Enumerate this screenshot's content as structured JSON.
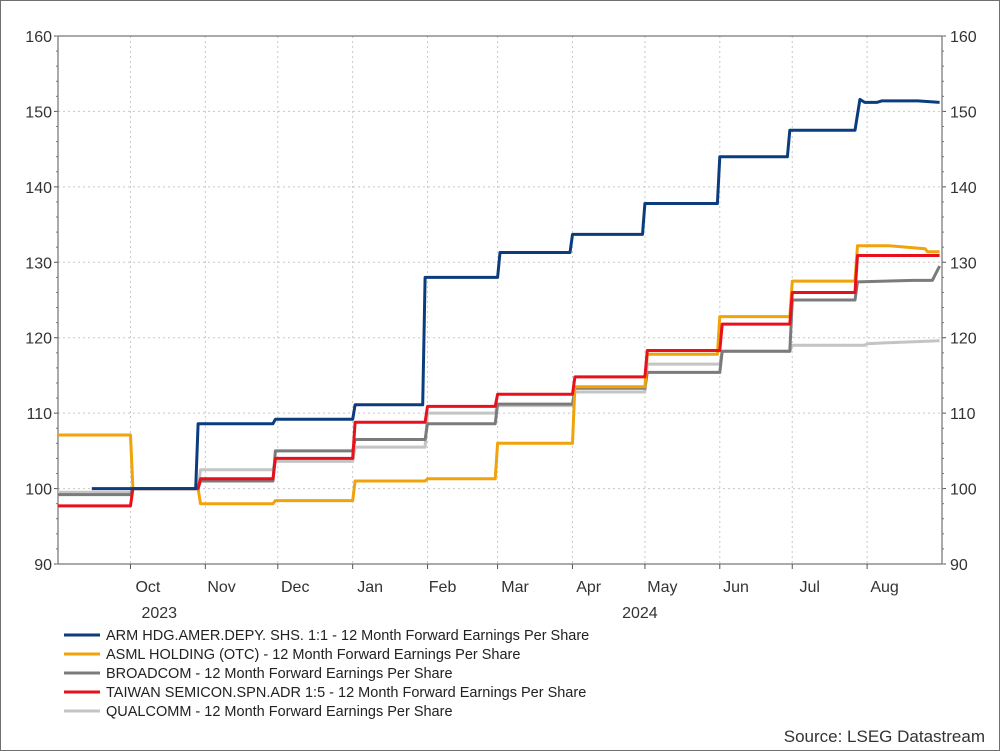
{
  "chart_data": {
    "type": "line",
    "source": "Source: LSEG Datastream",
    "ylim": [
      90,
      160
    ],
    "y_ticks": [
      90,
      100,
      110,
      120,
      130,
      140,
      150,
      160
    ],
    "x_range": [
      "2023-09-01",
      "2024-09-01"
    ],
    "x_ticks": [
      {
        "date": "2023-10-01",
        "label": "Oct"
      },
      {
        "date": "2023-11-01",
        "label": "Nov"
      },
      {
        "date": "2023-12-01",
        "label": "Dec"
      },
      {
        "date": "2024-01-01",
        "label": "Jan"
      },
      {
        "date": "2024-02-01",
        "label": "Feb"
      },
      {
        "date": "2024-03-01",
        "label": "Mar"
      },
      {
        "date": "2024-04-01",
        "label": "Apr"
      },
      {
        "date": "2024-05-01",
        "label": "May"
      },
      {
        "date": "2024-06-01",
        "label": "Jun"
      },
      {
        "date": "2024-07-01",
        "label": "Jul"
      },
      {
        "date": "2024-08-01",
        "label": "Aug"
      }
    ],
    "year_labels": [
      {
        "date": "2023-10-15",
        "label": "2023"
      },
      {
        "date": "2024-05-01",
        "label": "2024"
      }
    ],
    "grid": true,
    "legend_position": "bottom",
    "series": [
      {
        "name": "ARM HDG.AMER.DEPY. SHS. 1:1 - 12 Month Forward Earnings Per Share",
        "color": "#0b3d7e",
        "points": [
          [
            "2023-09-15",
            100
          ],
          [
            "2023-10-28",
            100
          ],
          [
            "2023-10-29",
            108.6
          ],
          [
            "2023-11-29",
            108.6
          ],
          [
            "2023-11-30",
            109.2
          ],
          [
            "2024-01-01",
            109.2
          ],
          [
            "2024-01-02",
            111.1
          ],
          [
            "2024-01-30",
            111.1
          ],
          [
            "2024-01-31",
            128.0
          ],
          [
            "2024-03-01",
            128.0
          ],
          [
            "2024-03-02",
            131.3
          ],
          [
            "2024-03-31",
            131.3
          ],
          [
            "2024-04-01",
            133.7
          ],
          [
            "2024-04-30",
            133.7
          ],
          [
            "2024-05-01",
            137.8
          ],
          [
            "2024-05-31",
            137.8
          ],
          [
            "2024-06-01",
            144.0
          ],
          [
            "2024-06-29",
            144.0
          ],
          [
            "2024-06-30",
            147.5
          ],
          [
            "2024-07-27",
            147.5
          ],
          [
            "2024-07-29",
            151.6
          ],
          [
            "2024-07-31",
            151.2
          ],
          [
            "2024-08-05",
            151.2
          ],
          [
            "2024-08-07",
            151.4
          ],
          [
            "2024-08-22",
            151.4
          ],
          [
            "2024-08-31",
            151.2
          ]
        ]
      },
      {
        "name": "ASML HOLDING (OTC) - 12 Month Forward Earnings Per Share",
        "color": "#f0a30a",
        "points": [
          [
            "2023-09-01",
            107.1
          ],
          [
            "2023-10-01",
            107.1
          ],
          [
            "2023-10-02",
            100.0
          ],
          [
            "2023-10-29",
            100.0
          ],
          [
            "2023-10-30",
            98.0
          ],
          [
            "2023-11-29",
            98.0
          ],
          [
            "2023-11-30",
            98.4
          ],
          [
            "2024-01-01",
            98.4
          ],
          [
            "2024-01-02",
            101.0
          ],
          [
            "2024-01-31",
            101.0
          ],
          [
            "2024-02-01",
            101.3
          ],
          [
            "2024-02-29",
            101.3
          ],
          [
            "2024-03-01",
            106.0
          ],
          [
            "2024-04-01",
            106.0
          ],
          [
            "2024-04-02",
            113.5
          ],
          [
            "2024-05-01",
            113.5
          ],
          [
            "2024-05-02",
            117.8
          ],
          [
            "2024-05-31",
            117.8
          ],
          [
            "2024-06-01",
            122.8
          ],
          [
            "2024-06-30",
            122.8
          ],
          [
            "2024-07-01",
            127.5
          ],
          [
            "2024-07-27",
            127.5
          ],
          [
            "2024-07-28",
            132.2
          ],
          [
            "2024-08-10",
            132.2
          ],
          [
            "2024-08-25",
            131.8
          ],
          [
            "2024-08-26",
            131.4
          ],
          [
            "2024-08-31",
            131.4
          ]
        ]
      },
      {
        "name": "BROADCOM - 12 Month Forward Earnings Per Share",
        "color": "#7b7b7b",
        "points": [
          [
            "2023-09-01",
            99.2
          ],
          [
            "2023-10-01",
            99.2
          ],
          [
            "2023-10-02",
            100.0
          ],
          [
            "2023-10-29",
            100.0
          ],
          [
            "2023-10-30",
            101.0
          ],
          [
            "2023-11-29",
            101.0
          ],
          [
            "2023-11-30",
            105.0
          ],
          [
            "2024-01-01",
            105.0
          ],
          [
            "2024-01-02",
            106.5
          ],
          [
            "2024-01-31",
            106.5
          ],
          [
            "2024-02-01",
            108.6
          ],
          [
            "2024-02-29",
            108.6
          ],
          [
            "2024-03-01",
            111.2
          ],
          [
            "2024-04-01",
            111.2
          ],
          [
            "2024-04-02",
            113.3
          ],
          [
            "2024-05-01",
            113.3
          ],
          [
            "2024-05-02",
            115.4
          ],
          [
            "2024-06-01",
            115.4
          ],
          [
            "2024-06-02",
            118.2
          ],
          [
            "2024-06-30",
            118.2
          ],
          [
            "2024-07-01",
            125.0
          ],
          [
            "2024-07-27",
            125.0
          ],
          [
            "2024-07-28",
            127.4
          ],
          [
            "2024-08-20",
            127.6
          ],
          [
            "2024-08-28",
            127.6
          ],
          [
            "2024-08-31",
            129.5
          ]
        ]
      },
      {
        "name": "TAIWAN SEMICON.SPN.ADR 1:5 - 12 Month Forward Earnings Per Share",
        "color": "#e8101a",
        "points": [
          [
            "2023-09-01",
            97.7
          ],
          [
            "2023-10-01",
            97.7
          ],
          [
            "2023-10-02",
            100.0
          ],
          [
            "2023-10-29",
            100.0
          ],
          [
            "2023-10-30",
            101.3
          ],
          [
            "2023-11-29",
            101.3
          ],
          [
            "2023-11-30",
            104.0
          ],
          [
            "2024-01-01",
            104.0
          ],
          [
            "2024-01-02",
            108.8
          ],
          [
            "2024-01-31",
            108.8
          ],
          [
            "2024-02-01",
            110.9
          ],
          [
            "2024-02-29",
            110.9
          ],
          [
            "2024-03-01",
            112.5
          ],
          [
            "2024-04-01",
            112.5
          ],
          [
            "2024-04-02",
            114.8
          ],
          [
            "2024-05-01",
            114.8
          ],
          [
            "2024-05-02",
            118.3
          ],
          [
            "2024-06-01",
            118.3
          ],
          [
            "2024-06-02",
            121.8
          ],
          [
            "2024-06-30",
            121.8
          ],
          [
            "2024-07-01",
            126.0
          ],
          [
            "2024-07-27",
            126.0
          ],
          [
            "2024-07-28",
            130.9
          ],
          [
            "2024-08-31",
            130.9
          ]
        ]
      },
      {
        "name": "QUALCOMM - 12 Month Forward Earnings Per Share",
        "color": "#c4c4c4",
        "points": [
          [
            "2023-09-01",
            99.5
          ],
          [
            "2023-10-01",
            99.5
          ],
          [
            "2023-10-02",
            100.0
          ],
          [
            "2023-10-29",
            100.0
          ],
          [
            "2023-10-30",
            102.5
          ],
          [
            "2023-11-29",
            102.5
          ],
          [
            "2023-11-30",
            103.6
          ],
          [
            "2024-01-01",
            103.6
          ],
          [
            "2024-01-02",
            105.5
          ],
          [
            "2024-01-31",
            105.5
          ],
          [
            "2024-02-01",
            110.0
          ],
          [
            "2024-02-29",
            110.0
          ],
          [
            "2024-03-01",
            111.0
          ],
          [
            "2024-04-01",
            111.0
          ],
          [
            "2024-04-02",
            112.8
          ],
          [
            "2024-05-01",
            112.8
          ],
          [
            "2024-05-02",
            116.5
          ],
          [
            "2024-06-01",
            116.5
          ],
          [
            "2024-06-02",
            118.2
          ],
          [
            "2024-06-30",
            118.2
          ],
          [
            "2024-07-01",
            119.0
          ],
          [
            "2024-07-31",
            119.0
          ],
          [
            "2024-08-01",
            119.2
          ],
          [
            "2024-08-15",
            119.4
          ],
          [
            "2024-08-31",
            119.6
          ]
        ]
      }
    ]
  }
}
